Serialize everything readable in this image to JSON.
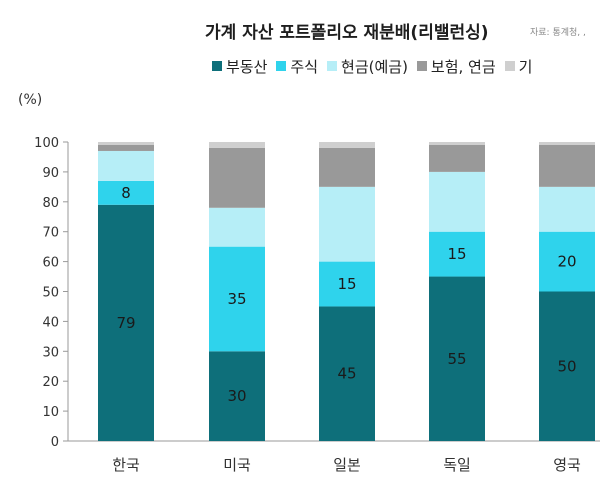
{
  "chart_data": {
    "type": "bar",
    "stacked": true,
    "title": "가계 자산 포트폴리오 재분배(리밸런싱)",
    "source": "자료: 통계청, , ",
    "unit_label": "(%)",
    "categories": [
      "한국",
      "미국",
      "일본",
      "독일",
      "영국"
    ],
    "ylim": [
      0,
      100
    ],
    "yticks": [
      0,
      10,
      20,
      30,
      40,
      50,
      60,
      70,
      80,
      90,
      100
    ],
    "grid": false,
    "legend_position": "top",
    "series": [
      {
        "name": "부동산",
        "color": "#0e6f7a",
        "values": [
          79,
          30,
          45,
          55,
          50
        ],
        "labels": [
          "79",
          "30",
          "45",
          "55",
          "50"
        ]
      },
      {
        "name": "주식",
        "color": "#2fd3ec",
        "values": [
          8,
          35,
          15,
          15,
          20
        ],
        "labels": [
          "8",
          "35",
          "15",
          "15",
          "20"
        ]
      },
      {
        "name": "현금(예금)",
        "color": "#b6eef7",
        "values": [
          10,
          13,
          25,
          20,
          15
        ],
        "labels": [
          "",
          "",
          "",
          "",
          ""
        ]
      },
      {
        "name": "보험, 연금",
        "color": "#999999",
        "values": [
          2,
          20,
          13,
          9,
          14
        ],
        "labels": [
          "",
          "",
          "",
          "",
          ""
        ]
      },
      {
        "name": "기",
        "color": "#cfcfcf",
        "values": [
          1,
          2,
          2,
          1,
          1
        ],
        "labels": [
          "",
          "",
          "",
          "",
          ""
        ]
      }
    ]
  }
}
